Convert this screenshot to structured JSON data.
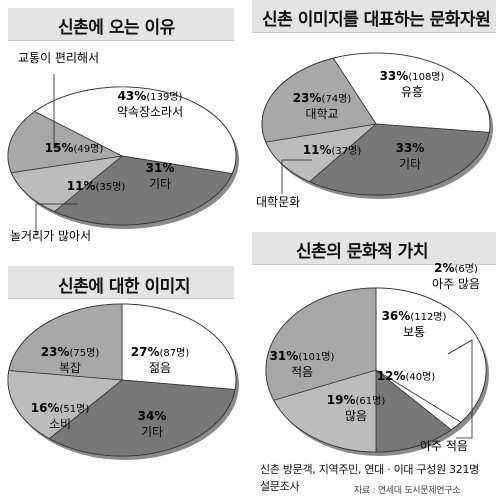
{
  "chart_data": [
    {
      "type": "pie",
      "title": "신촌에 오는 이유",
      "slices": [
        {
          "key": "p1",
          "pct": "43%",
          "count": "(139명)",
          "label": "약속장소라서",
          "value": 43
        },
        {
          "key": "p2",
          "pct": "31%",
          "count": "",
          "label": "기타",
          "value": 31
        },
        {
          "key": "p3",
          "pct": "11%",
          "count": "(35명)",
          "label": "",
          "value": 11
        },
        {
          "key": "p4",
          "pct": "15%",
          "count": "(49명)",
          "label": "",
          "value": 15
        }
      ],
      "callouts": [
        "교통이 편리해서",
        "놀거리가 많아서"
      ]
    },
    {
      "type": "pie",
      "title": "신촌 이미지를 대표하는 문화자원",
      "slices": [
        {
          "key": "p1",
          "pct": "33%",
          "count": "(108명)",
          "label": "유흥",
          "value": 33
        },
        {
          "key": "p2",
          "pct": "33%",
          "count": "",
          "label": "기타",
          "value": 33
        },
        {
          "key": "p3",
          "pct": "11%",
          "count": "(37명)",
          "label": "",
          "value": 11
        },
        {
          "key": "p4",
          "pct": "23%",
          "count": "(74명)",
          "label": "대학교",
          "value": 23
        }
      ],
      "callouts": [
        "대학문화"
      ]
    },
    {
      "type": "pie",
      "title": "신촌에 대한 이미지",
      "slices": [
        {
          "key": "p1",
          "pct": "27%",
          "count": "(87명)",
          "label": "젊음",
          "value": 27
        },
        {
          "key": "p2",
          "pct": "34%",
          "count": "",
          "label": "기타",
          "value": 34
        },
        {
          "key": "p3",
          "pct": "16%",
          "count": "(51명)",
          "label": "소비",
          "value": 16
        },
        {
          "key": "p4",
          "pct": "23%",
          "count": "(75명)",
          "label": "복잡",
          "value": 23
        }
      ],
      "callouts": []
    },
    {
      "type": "pie",
      "title": "신촌의 문화적 가치",
      "slices": [
        {
          "key": "p1",
          "pct": "36%",
          "count": "(112명)",
          "label": "보통",
          "value": 36
        },
        {
          "key": "p2",
          "pct": "2%",
          "count": "(6명)",
          "label": "아주 많음",
          "value": 2
        },
        {
          "key": "p3",
          "pct": "12%",
          "count": "(40명)",
          "label": "",
          "value": 12
        },
        {
          "key": "p4",
          "pct": "19%",
          "count": "(61명)",
          "label": "많음",
          "value": 19
        },
        {
          "key": "p5",
          "pct": "31%",
          "count": "(101명)",
          "label": "적음",
          "value": 31
        }
      ],
      "callouts": [
        "아주 적음"
      ]
    }
  ],
  "footer": {
    "line1": "신촌 방문객, 지역주민, 연대 · 이대 구성원 321명",
    "line2": "설문조사",
    "source": "자료 : 연세대 도시문제연구소"
  }
}
